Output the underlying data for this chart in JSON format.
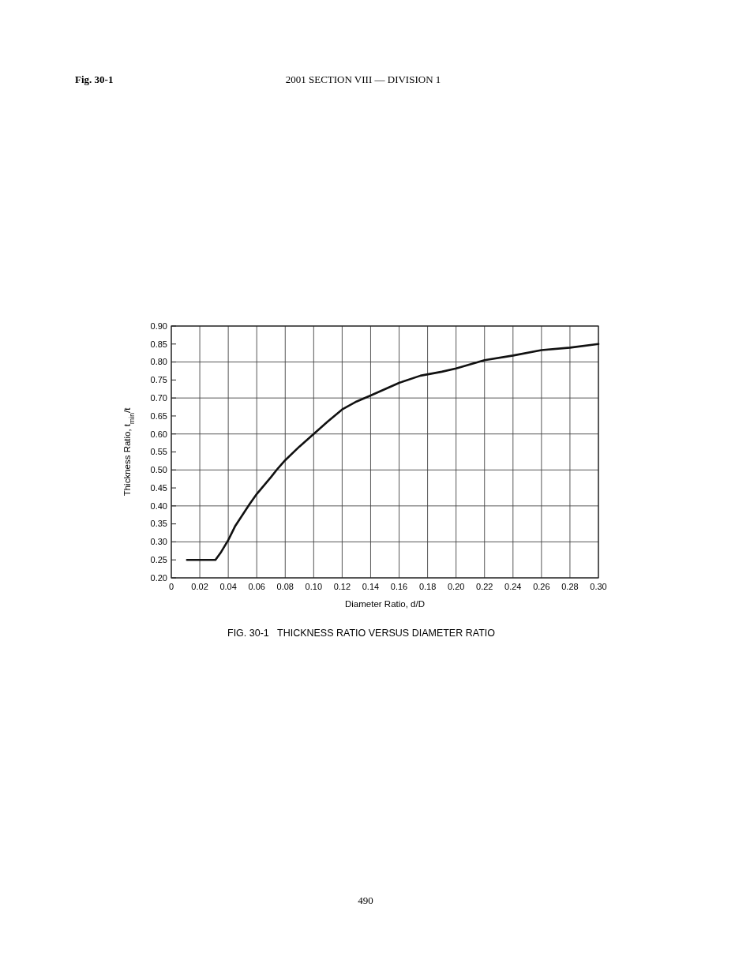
{
  "chart_data": {
    "type": "line",
    "title": "FIG. 30-1   THICKNESS RATIO VERSUS DIAMETER RATIO",
    "annotations": [
      "Fig. 30-1",
      "2001 SECTION VIII — DIVISION 1",
      "490"
    ],
    "xlabel": "Diameter Ratio, d/D",
    "ylabel": "Thickness Ratio, t$_{min}$/t",
    "x": [
      0.011,
      0.031,
      0.035,
      0.04,
      0.045,
      0.05,
      0.055,
      0.06,
      0.07,
      0.075,
      0.08,
      0.09,
      0.1,
      0.11,
      0.12,
      0.13,
      0.14,
      0.16,
      0.175,
      0.19,
      0.2,
      0.22,
      0.24,
      0.26,
      0.28,
      0.3
    ],
    "series": [
      {
        "color": "#111111",
        "values": [
          0.25,
          0.25,
          0.272,
          0.305,
          0.345,
          0.375,
          0.405,
          0.433,
          0.48,
          0.505,
          0.527,
          0.565,
          0.6,
          0.635,
          0.668,
          0.69,
          0.707,
          0.742,
          0.762,
          0.773,
          0.782,
          0.805,
          0.818,
          0.833,
          0.84,
          0.85
        ]
      }
    ],
    "xlim": [
      0,
      0.3
    ],
    "ylim": [
      0.2,
      0.9
    ],
    "xticks": [
      0,
      {
        "value": 0.02,
        "label": "0.02"
      },
      {
        "value": 0.04,
        "label": "0.04"
      },
      {
        "value": 0.06,
        "label": "0.06"
      },
      {
        "value": 0.08,
        "label": "0.08"
      },
      {
        "value": 0.1,
        "label": "0.10"
      },
      {
        "value": 0.12,
        "label": "0.12"
      },
      {
        "value": 0.14,
        "label": "0.14"
      },
      {
        "value": 0.16,
        "label": "0.16"
      },
      {
        "value": 0.18,
        "label": "0.18"
      },
      {
        "value": 0.2,
        "label": "0.20"
      },
      {
        "value": 0.22,
        "label": "0.22"
      },
      {
        "value": 0.24,
        "label": "0.24"
      },
      {
        "value": 0.26,
        "label": "0.26"
      },
      {
        "value": 0.28,
        "label": "0.28"
      },
      {
        "value": 0.3,
        "label": "0.30"
      }
    ],
    "yticks": [
      {
        "value": 0.2,
        "label": "0.20"
      },
      {
        "value": 0.25,
        "label": "0.25"
      },
      {
        "value": 0.3,
        "label": "0.30"
      },
      {
        "value": 0.35,
        "label": "0.35"
      },
      {
        "value": 0.4,
        "label": "0.40"
      },
      {
        "value": 0.45,
        "label": "0.45"
      },
      {
        "value": 0.5,
        "label": "0.50"
      },
      {
        "value": 0.55,
        "label": "0.55"
      },
      {
        "value": 0.6,
        "label": "0.60"
      },
      {
        "value": 0.65,
        "label": "0.65"
      },
      {
        "value": 0.7,
        "label": "0.70"
      },
      {
        "value": 0.75,
        "label": "0.75"
      },
      {
        "value": 0.8,
        "label": "0.80"
      },
      {
        "value": 0.85,
        "label": "0.85"
      },
      {
        "value": 0.9,
        "label": "0.90"
      }
    ],
    "grid": true,
    "marker": "none",
    "line_style": "solid"
  }
}
